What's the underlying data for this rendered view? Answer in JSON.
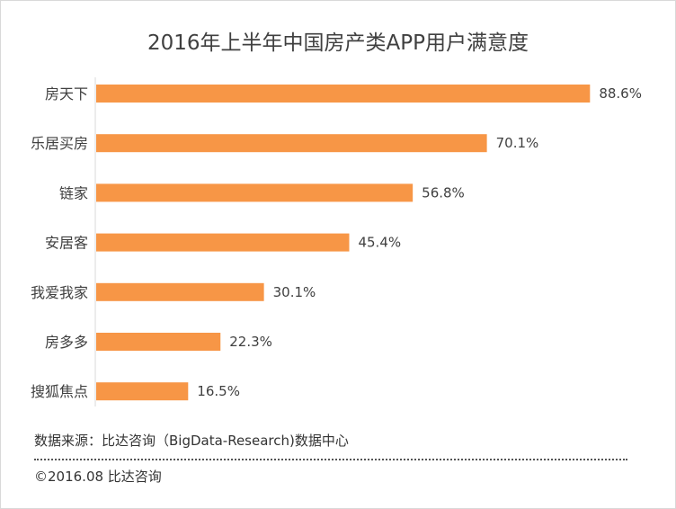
{
  "chart_data": {
    "type": "bar",
    "orientation": "horizontal",
    "title": "2016年上半年中国房产类APP用户满意度",
    "categories": [
      "房天下",
      "乐居买房",
      "链家",
      "安居客",
      "我爱我家",
      "房多多",
      "搜狐焦点"
    ],
    "values": [
      88.6,
      70.1,
      56.8,
      45.4,
      30.1,
      22.3,
      16.5
    ],
    "value_suffix": "%",
    "xlabel": "",
    "ylabel": "",
    "xlim": [
      0,
      100
    ],
    "grid": false,
    "legend": "none",
    "bar_color": "#F79646"
  },
  "footer": {
    "source": "数据来源：比达咨询（BigData-Research)数据中心",
    "copyright": "©2016.08 比达咨询"
  }
}
